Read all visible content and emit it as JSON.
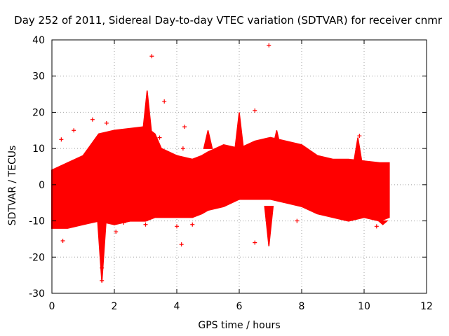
{
  "chart_data": {
    "type": "scatter",
    "title": "Day 252 of 2011, Sidereal Day-to-day VTEC variation (SDTVAR) for receiver cnmr",
    "xlabel": "GPS time / hours",
    "ylabel": "SDTVAR / TECUs",
    "xlim": [
      0,
      12
    ],
    "ylim": [
      -30,
      40
    ],
    "xticks": [
      0,
      2,
      4,
      6,
      8,
      10,
      12
    ],
    "yticks": [
      -30,
      -20,
      -10,
      0,
      10,
      20,
      30,
      40
    ],
    "grid": true,
    "marker": "+",
    "color": "#ff0000",
    "band_x": [
      0.0,
      0.5,
      1.0,
      1.5,
      2.0,
      2.5,
      3.0,
      3.3,
      3.5,
      4.0,
      4.5,
      4.8,
      5.0,
      5.5,
      6.0,
      6.5,
      7.0,
      7.5,
      8.0,
      8.5,
      9.0,
      9.5,
      10.0,
      10.5,
      10.8
    ],
    "band_upper": [
      4,
      6,
      8,
      14,
      15,
      15.5,
      16,
      14,
      10,
      8,
      7,
      8,
      9,
      11,
      10,
      12,
      13,
      12,
      11,
      8,
      7,
      7,
      6.5,
      6,
      6
    ],
    "band_lower": [
      -12,
      -12,
      -11,
      -10,
      -11,
      -10,
      -10,
      -9,
      -9,
      -9,
      -9,
      -8,
      -7,
      -6,
      -4,
      -4,
      -4,
      -5,
      -6,
      -8,
      -9,
      -10,
      -9,
      -10,
      -9
    ],
    "spikes": [
      {
        "x": 3.05,
        "y_from": 15,
        "y_to": 26
      },
      {
        "x": 5.0,
        "y_from": 10,
        "y_to": 15
      },
      {
        "x": 6.0,
        "y_from": 10,
        "y_to": 20
      },
      {
        "x": 7.2,
        "y_from": 10,
        "y_to": 15
      },
      {
        "x": 9.8,
        "y_from": 6,
        "y_to": 13
      },
      {
        "x": 1.6,
        "y_from": -10,
        "y_to": -27
      },
      {
        "x": 6.95,
        "y_from": -6,
        "y_to": -17
      },
      {
        "x": 10.6,
        "y_from": -10,
        "y_to": -11
      }
    ],
    "outliers": [
      {
        "x": 3.2,
        "y": 35.5
      },
      {
        "x": 6.95,
        "y": 38.5
      },
      {
        "x": 3.6,
        "y": 23
      },
      {
        "x": 6.5,
        "y": 20.5
      },
      {
        "x": 0.3,
        "y": 12.5
      },
      {
        "x": 0.7,
        "y": 15
      },
      {
        "x": 1.75,
        "y": 17
      },
      {
        "x": 1.3,
        "y": 18
      },
      {
        "x": 3.45,
        "y": 13
      },
      {
        "x": 4.25,
        "y": 16
      },
      {
        "x": 4.2,
        "y": 10
      },
      {
        "x": 9.85,
        "y": 13.5
      },
      {
        "x": 1.6,
        "y": -26.5
      },
      {
        "x": 0.35,
        "y": -15.5
      },
      {
        "x": 4.15,
        "y": -16.5
      },
      {
        "x": 6.5,
        "y": -16
      },
      {
        "x": 7.85,
        "y": -10
      },
      {
        "x": 10.4,
        "y": -11.5
      },
      {
        "x": 2.05,
        "y": -13
      },
      {
        "x": 3.0,
        "y": -11
      },
      {
        "x": 4.5,
        "y": -11
      },
      {
        "x": 4.0,
        "y": -11.5
      },
      {
        "x": 1.6,
        "y": -23
      },
      {
        "x": 2.3,
        "y": -10.5
      }
    ]
  }
}
